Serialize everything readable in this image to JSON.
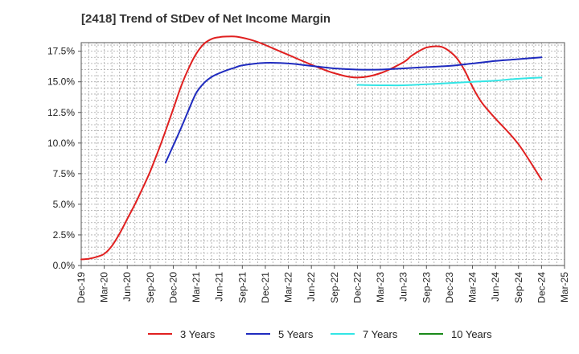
{
  "chart_data": {
    "type": "line",
    "title": "[2418]  Trend of StDev of Net Income Margin",
    "xlabel": "",
    "ylabel": "",
    "x_ticks": [
      "Dec-19",
      "Mar-20",
      "Jun-20",
      "Sep-20",
      "Dec-20",
      "Mar-21",
      "Jun-21",
      "Sep-21",
      "Dec-21",
      "Mar-22",
      "Jun-22",
      "Sep-22",
      "Dec-22",
      "Mar-23",
      "Jun-23",
      "Sep-23",
      "Dec-23",
      "Mar-24",
      "Jun-24",
      "Sep-24",
      "Dec-24",
      "Mar-25"
    ],
    "y_ticks": [
      "0.0%",
      "2.5%",
      "5.0%",
      "7.5%",
      "10.0%",
      "12.5%",
      "15.0%",
      "17.5%"
    ],
    "ylim": [
      0,
      18.2
    ],
    "grid": true,
    "legend_position": "bottom",
    "series": [
      {
        "name": "3 Years",
        "color": "#e02020",
        "x": [
          "Dec-19",
          "Jan-20",
          "Feb-20",
          "Mar-20",
          "Apr-20",
          "May-20",
          "Jun-20",
          "Jul-20",
          "Aug-20",
          "Sep-20",
          "Oct-20",
          "Nov-20",
          "Dec-20",
          "Jan-21",
          "Feb-21",
          "Mar-21",
          "Apr-21",
          "May-21",
          "Jun-21",
          "Jul-21",
          "Aug-21",
          "Sep-21",
          "Oct-21",
          "Nov-21",
          "Dec-21",
          "Mar-22",
          "Jun-22",
          "Sep-22",
          "Dec-22",
          "Mar-23",
          "Jun-23",
          "Jul-23",
          "Aug-23",
          "Sep-23",
          "Oct-23",
          "Nov-23",
          "Dec-23",
          "Jan-24",
          "Feb-24",
          "Mar-24",
          "Apr-24",
          "May-24",
          "Jun-24",
          "Sep-24",
          "Dec-24"
        ],
        "values": [
          0.5,
          0.55,
          0.7,
          0.95,
          1.6,
          2.6,
          3.8,
          5.0,
          6.3,
          7.7,
          9.3,
          11.0,
          12.8,
          14.6,
          16.1,
          17.3,
          18.1,
          18.5,
          18.65,
          18.7,
          18.7,
          18.6,
          18.45,
          18.25,
          18.0,
          17.2,
          16.4,
          15.7,
          15.35,
          15.7,
          16.6,
          17.1,
          17.5,
          17.8,
          17.9,
          17.85,
          17.5,
          16.9,
          15.9,
          14.6,
          13.5,
          12.7,
          12.0,
          9.9,
          7.0
        ]
      },
      {
        "name": "5 Years",
        "color": "#1f2bbf",
        "x": [
          "Nov-20",
          "Dec-20",
          "Jan-21",
          "Feb-21",
          "Mar-21",
          "Apr-21",
          "May-21",
          "Jun-21",
          "Jul-21",
          "Aug-21",
          "Sep-21",
          "Dec-21",
          "Mar-22",
          "Jun-22",
          "Sep-22",
          "Dec-22",
          "Mar-23",
          "Jun-23",
          "Sep-23",
          "Dec-23",
          "Mar-24",
          "Jun-24",
          "Sep-24",
          "Dec-24"
        ],
        "values": [
          8.4,
          9.8,
          11.2,
          12.7,
          14.1,
          14.9,
          15.4,
          15.7,
          15.95,
          16.15,
          16.35,
          16.55,
          16.5,
          16.3,
          16.1,
          16.0,
          16.0,
          16.1,
          16.2,
          16.3,
          16.5,
          16.7,
          16.85,
          17.0
        ]
      },
      {
        "name": "7 Years",
        "color": "#33e5e5",
        "x": [
          "Dec-22",
          "Mar-23",
          "Jun-23",
          "Sep-23",
          "Dec-23",
          "Mar-24",
          "Jun-24",
          "Sep-24",
          "Dec-24"
        ],
        "values": [
          14.75,
          14.72,
          14.72,
          14.8,
          14.9,
          15.0,
          15.1,
          15.25,
          15.35
        ]
      },
      {
        "name": "10 Years",
        "color": "#1a8a1a",
        "x": [],
        "values": []
      }
    ]
  }
}
